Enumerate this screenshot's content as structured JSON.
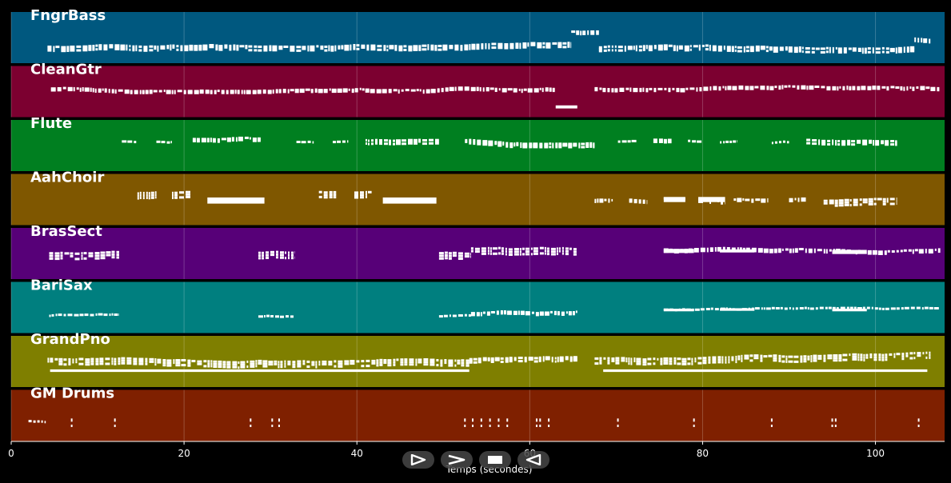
{
  "chart_data": {
    "type": "piano-roll",
    "xlabel": "Temps (secondes)",
    "xlim": [
      0,
      108
    ],
    "xticks": [
      0,
      20,
      40,
      60,
      80,
      100
    ],
    "grid": true,
    "tracks": [
      {
        "name": "FngrBass",
        "color": "#00587f",
        "segments": [
          [
            4.2,
            64.8,
            0.72,
            0.18
          ],
          [
            64.8,
            68,
            0.4,
            0.14
          ],
          [
            68,
            104.5,
            0.72,
            0.18
          ],
          [
            104.5,
            106.5,
            0.55,
            0.15
          ]
        ],
        "blocks": []
      },
      {
        "name": "CleanGtr",
        "color": "#7c0030",
        "segments": [
          [
            4.6,
            63,
            0.45,
            0.12
          ],
          [
            67.5,
            107.5,
            0.45,
            0.12
          ]
        ],
        "blocks": [
          [
            63,
            65.5,
            0.8,
            0.06
          ]
        ]
      },
      {
        "name": "Flute",
        "color": "#007f20",
        "segments": [
          [
            12.8,
            14.5,
            0.42,
            0.1
          ],
          [
            16.8,
            18.6,
            0.42,
            0.1
          ],
          [
            21,
            29,
            0.4,
            0.14
          ],
          [
            33,
            35,
            0.42,
            0.1
          ],
          [
            37.2,
            39,
            0.44,
            0.1
          ],
          [
            41,
            49.5,
            0.42,
            0.16
          ],
          [
            52.5,
            67.5,
            0.42,
            0.16
          ],
          [
            70.2,
            72.4,
            0.42,
            0.1
          ],
          [
            74.3,
            76.4,
            0.4,
            0.14
          ],
          [
            78.3,
            80,
            0.4,
            0.1
          ],
          [
            82,
            84,
            0.44,
            0.1
          ],
          [
            88,
            90,
            0.44,
            0.1
          ],
          [
            92,
            102.5,
            0.42,
            0.16
          ]
        ],
        "blocks": []
      },
      {
        "name": "AahChoir",
        "color": "#7f5700",
        "segments": [
          [
            14.6,
            16.8,
            0.42,
            0.24
          ],
          [
            18.6,
            20.8,
            0.42,
            0.24
          ],
          [
            35.6,
            37.6,
            0.4,
            0.24
          ],
          [
            39.7,
            41.7,
            0.42,
            0.24
          ],
          [
            67.5,
            69.6,
            0.52,
            0.12
          ],
          [
            71.5,
            73.6,
            0.52,
            0.12
          ],
          [
            75.5,
            78,
            0.5,
            0.12
          ],
          [
            79.5,
            82.6,
            0.52,
            0.12
          ],
          [
            83.6,
            87.6,
            0.52,
            0.12
          ],
          [
            90,
            92,
            0.52,
            0.12
          ],
          [
            94,
            102.5,
            0.58,
            0.24
          ]
        ],
        "blocks": [
          [
            22.7,
            29.3,
            0.52,
            0.12
          ],
          [
            43,
            49.2,
            0.52,
            0.12
          ],
          [
            75.5,
            78,
            0.5,
            0.1
          ],
          [
            79.5,
            82.6,
            0.5,
            0.1
          ]
        ]
      },
      {
        "name": "BrasSect",
        "color": "#570078",
        "segments": [
          [
            4.4,
            12.5,
            0.55,
            0.26
          ],
          [
            28.6,
            32.8,
            0.55,
            0.26
          ],
          [
            49.5,
            53.2,
            0.55,
            0.26
          ],
          [
            53.2,
            65.5,
            0.45,
            0.26
          ],
          [
            75.5,
            107.5,
            0.45,
            0.14
          ]
        ],
        "blocks": [
          [
            75.5,
            79,
            0.45,
            0.08
          ],
          [
            82,
            86,
            0.45,
            0.06
          ],
          [
            95,
            99,
            0.47,
            0.08
          ]
        ]
      },
      {
        "name": "BariSax",
        "color": "#007f7f",
        "segments": [
          [
            4.4,
            12.5,
            0.67,
            0.1
          ],
          [
            28.6,
            32.8,
            0.67,
            0.1
          ],
          [
            49.5,
            53.2,
            0.67,
            0.1
          ],
          [
            53.2,
            65.5,
            0.62,
            0.12
          ],
          [
            75.5,
            107.5,
            0.55,
            0.08
          ]
        ],
        "blocks": [
          [
            75.5,
            79,
            0.55,
            0.05
          ],
          [
            82,
            86,
            0.54,
            0.05
          ],
          [
            95,
            99,
            0.55,
            0.05
          ]
        ]
      },
      {
        "name": "GrandPno",
        "color": "#7f7f00",
        "segments": [
          [
            4.2,
            53,
            0.5,
            0.24
          ],
          [
            53,
            65.5,
            0.48,
            0.16
          ],
          [
            67.5,
            106.5,
            0.5,
            0.24
          ]
        ],
        "blocks": [
          [
            4.5,
            53,
            0.68,
            0.05
          ],
          [
            68.5,
            106,
            0.68,
            0.05
          ]
        ]
      },
      {
        "name": "GM Drums",
        "color": "#7f2000",
        "segments": [
          [
            2,
            4,
            0.62,
            0.1
          ]
        ],
        "hits": [
          7,
          12,
          27.7,
          30.2,
          31,
          52.5,
          53.4,
          54.4,
          55.4,
          56.4,
          57.4,
          60.8,
          61.2,
          62.2,
          70.2,
          79,
          88,
          95,
          95.4,
          105
        ]
      }
    ]
  },
  "controls": {
    "play_icon": "play-outline-icon",
    "fast_forward_icon": "chevron-right-icon",
    "stop_icon": "stop-icon",
    "rewind_icon": "rewind-outline-icon"
  }
}
